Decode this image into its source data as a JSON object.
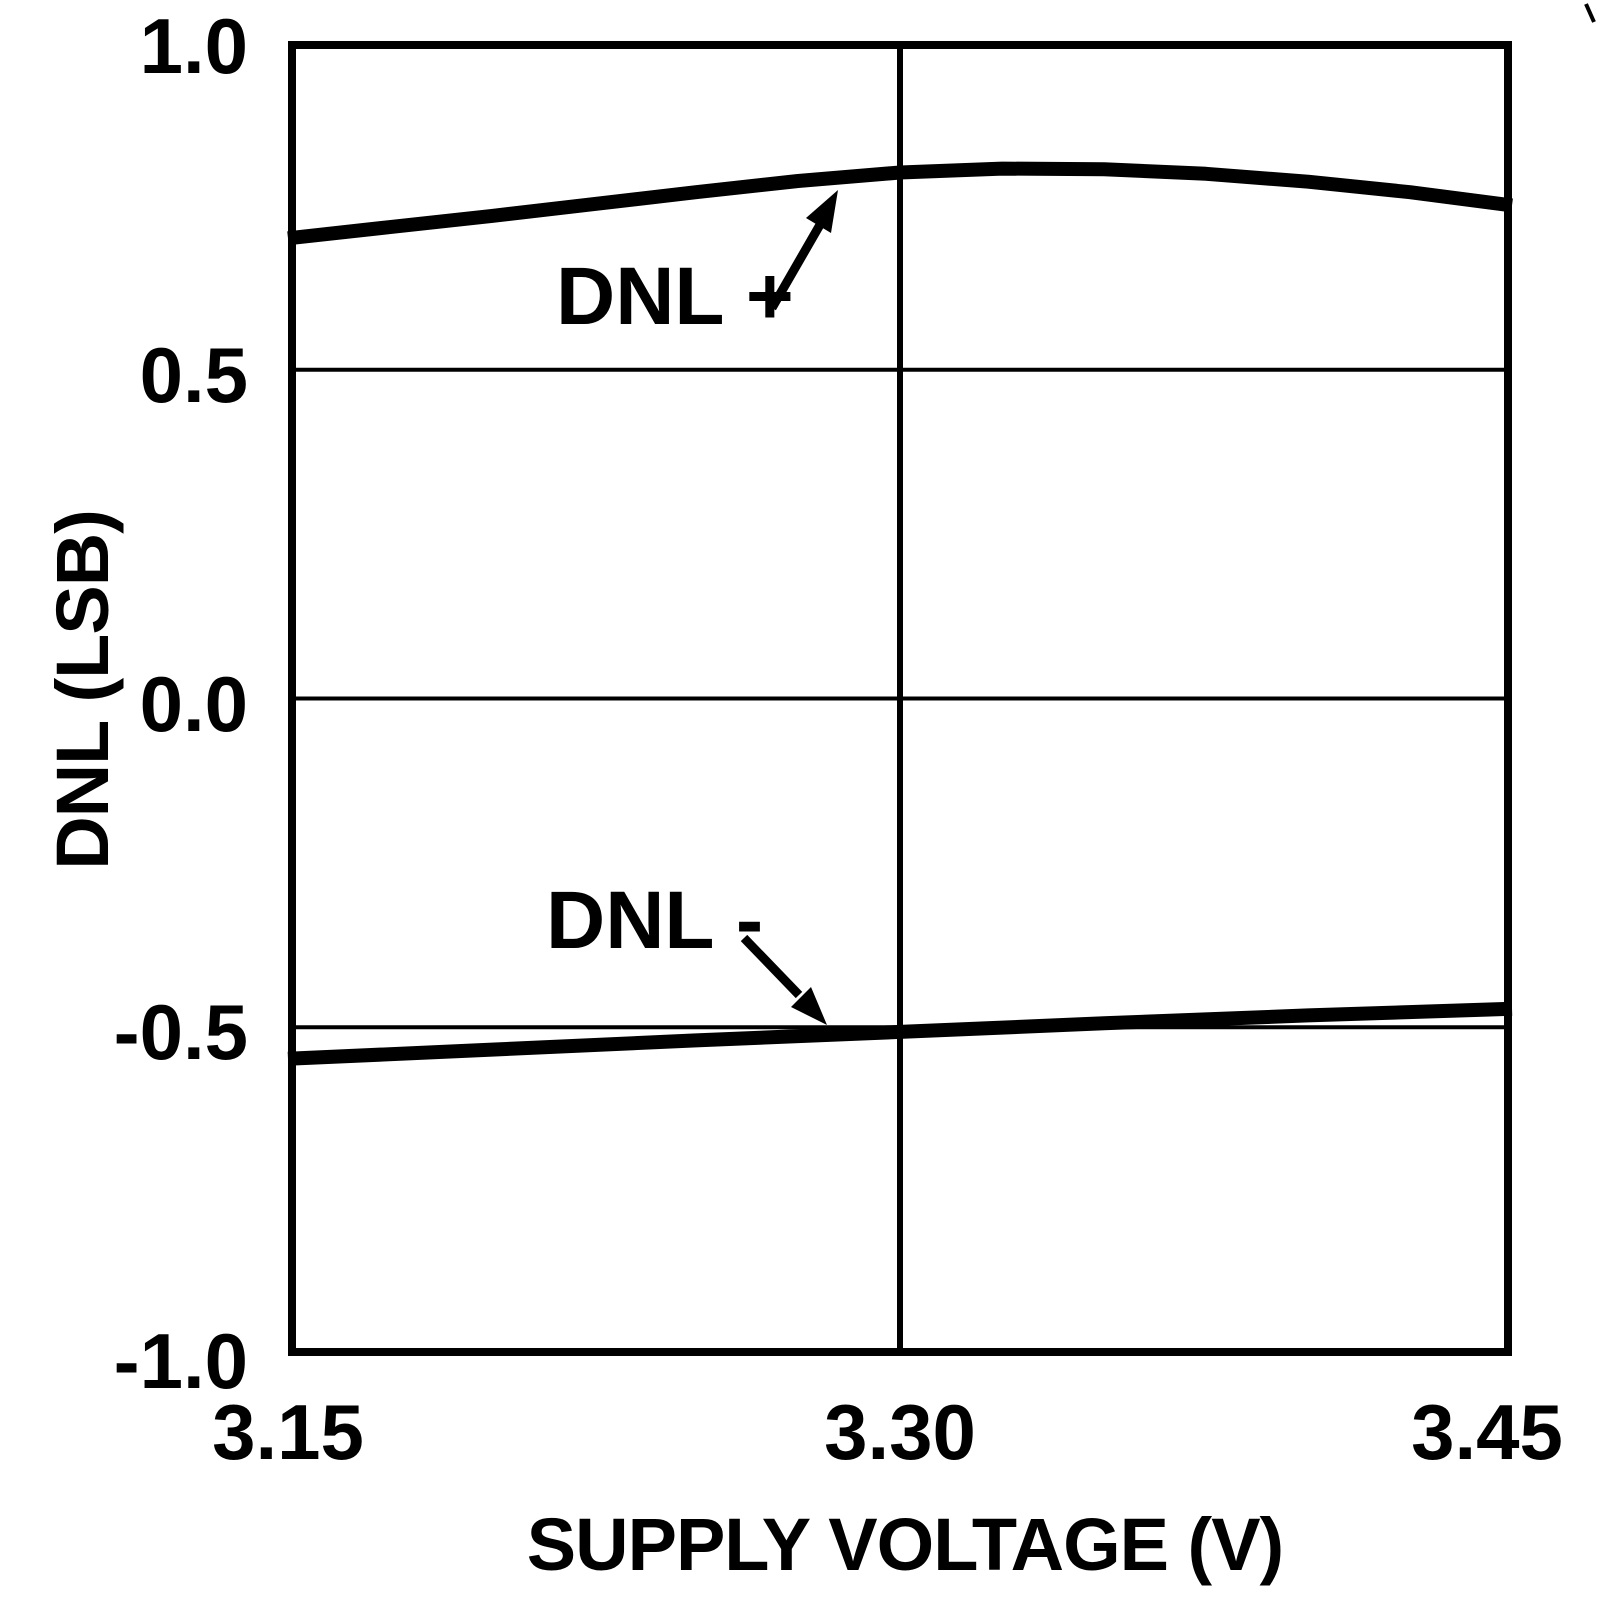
{
  "figure": {
    "background_color": "#ffffff",
    "ink_color": "#000000"
  },
  "chart_data": {
    "type": "line",
    "title": "",
    "xlabel": "SUPPLY VOLTAGE (V)",
    "ylabel": "DNL (LSB)",
    "xlim": [
      3.15,
      3.45
    ],
    "ylim": [
      -1.0,
      1.0
    ],
    "grid": "partial",
    "legend_position": "none",
    "x_ticks": [
      {
        "value": 3.15,
        "label": "3.15"
      },
      {
        "value": 3.3,
        "label": "3.30"
      },
      {
        "value": 3.45,
        "label": "3.45"
      }
    ],
    "y_ticks": [
      {
        "value": 1.0,
        "label": "1.0"
      },
      {
        "value": 0.5,
        "label": "0.5"
      },
      {
        "value": 0.0,
        "label": "0.0"
      },
      {
        "value": -0.5,
        "label": "-0.5"
      },
      {
        "value": -1.0,
        "label": "-1.0"
      }
    ],
    "gridlines": {
      "horizontal_values": [
        0.5,
        0.0,
        -0.5
      ],
      "vertical_values": [
        3.3
      ]
    },
    "series": [
      {
        "name": "DNL +",
        "x": [
          3.15,
          3.175,
          3.2,
          3.225,
          3.25,
          3.275,
          3.3,
          3.325,
          3.35,
          3.375,
          3.4,
          3.425,
          3.45
        ],
        "values": [
          0.7,
          0.717,
          0.734,
          0.752,
          0.77,
          0.787,
          0.8,
          0.806,
          0.805,
          0.798,
          0.786,
          0.77,
          0.75
        ]
      },
      {
        "name": "DNL -",
        "x": [
          3.15,
          3.2,
          3.25,
          3.3,
          3.35,
          3.4,
          3.45
        ],
        "values": [
          -0.548,
          -0.534,
          -0.52,
          -0.507,
          -0.494,
          -0.482,
          -0.472
        ]
      }
    ],
    "annotations": [
      {
        "label": "DNL +",
        "points_to_series": "DNL +"
      },
      {
        "label": "DNL -",
        "points_to_series": "DNL -"
      }
    ]
  }
}
